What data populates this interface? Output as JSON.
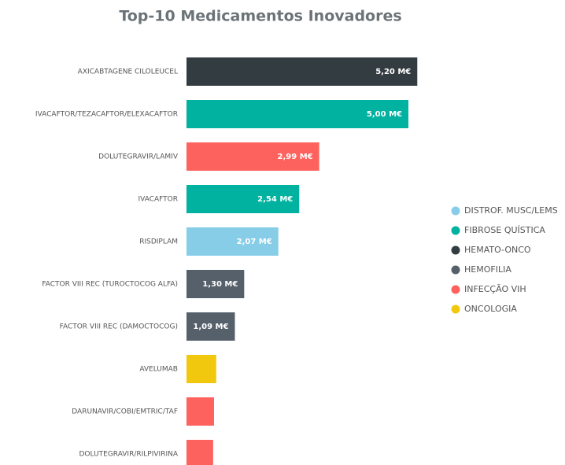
{
  "chart_data": {
    "type": "bar",
    "title": "Top-10 Medicamentos Inovadores",
    "categories": [
      "AXICABTAGENE CILOLEUCEL",
      "IVACAFTOR/TEZACAFTOR/ELEXACAFTOR",
      "DOLUTEGRAVIR/LAMIV",
      "IVACAFTOR",
      "RISDIPLAM",
      "FACTOR VIII REC (TUROCTOCOG ALFA)",
      "FACTOR VIII REC (DAMOCTOCOG)",
      "AVELUMAB",
      "DARUNAVIR/COBI/EMTRIC/TAF",
      "DOLUTEGRAVIR/RILPIVIRINA"
    ],
    "series": [
      {
        "name": "DISTROF. MUSC/LEMS",
        "color": "#87cde8",
        "values": [
          null,
          null,
          null,
          null,
          2.07,
          null,
          null,
          null,
          null,
          null
        ],
        "value_labels": [
          null,
          null,
          null,
          null,
          "2,07 M€",
          null,
          null,
          null,
          null,
          null
        ]
      },
      {
        "name": "FIBROSE QUÍSTICA",
        "color": "#01b2a0",
        "values": [
          null,
          5.0,
          null,
          2.54,
          null,
          null,
          null,
          null,
          null,
          null
        ],
        "value_labels": [
          null,
          "5,00 M€",
          null,
          "2,54 M€",
          null,
          null,
          null,
          null,
          null,
          null
        ]
      },
      {
        "name": "HEMATO-ONCO",
        "color": "#333c40",
        "values": [
          5.2,
          null,
          null,
          null,
          null,
          null,
          null,
          null,
          null,
          null
        ],
        "value_labels": [
          "5,20 M€",
          null,
          null,
          null,
          null,
          null,
          null,
          null,
          null,
          null
        ]
      },
      {
        "name": "HEMOFILIA",
        "color": "#56606a",
        "values": [
          null,
          null,
          null,
          null,
          null,
          1.3,
          1.09,
          null,
          null,
          null
        ],
        "value_labels": [
          null,
          null,
          null,
          null,
          null,
          "1,30 M€",
          "1,09 M€",
          null,
          null,
          null
        ]
      },
      {
        "name": "INFECÇÃO VIH",
        "color": "#fd625e",
        "values": [
          null,
          null,
          2.99,
          null,
          null,
          null,
          null,
          null,
          0.62,
          0.6
        ],
        "value_labels": [
          null,
          null,
          "2,99 M€",
          null,
          null,
          null,
          null,
          null,
          null,
          null
        ]
      },
      {
        "name": "ONCOLOGIA",
        "color": "#f2c80f",
        "values": [
          null,
          null,
          null,
          null,
          null,
          null,
          null,
          0.67,
          null,
          null
        ],
        "value_labels": [
          null,
          null,
          null,
          null,
          null,
          null,
          null,
          null,
          null,
          null
        ]
      }
    ]
  }
}
